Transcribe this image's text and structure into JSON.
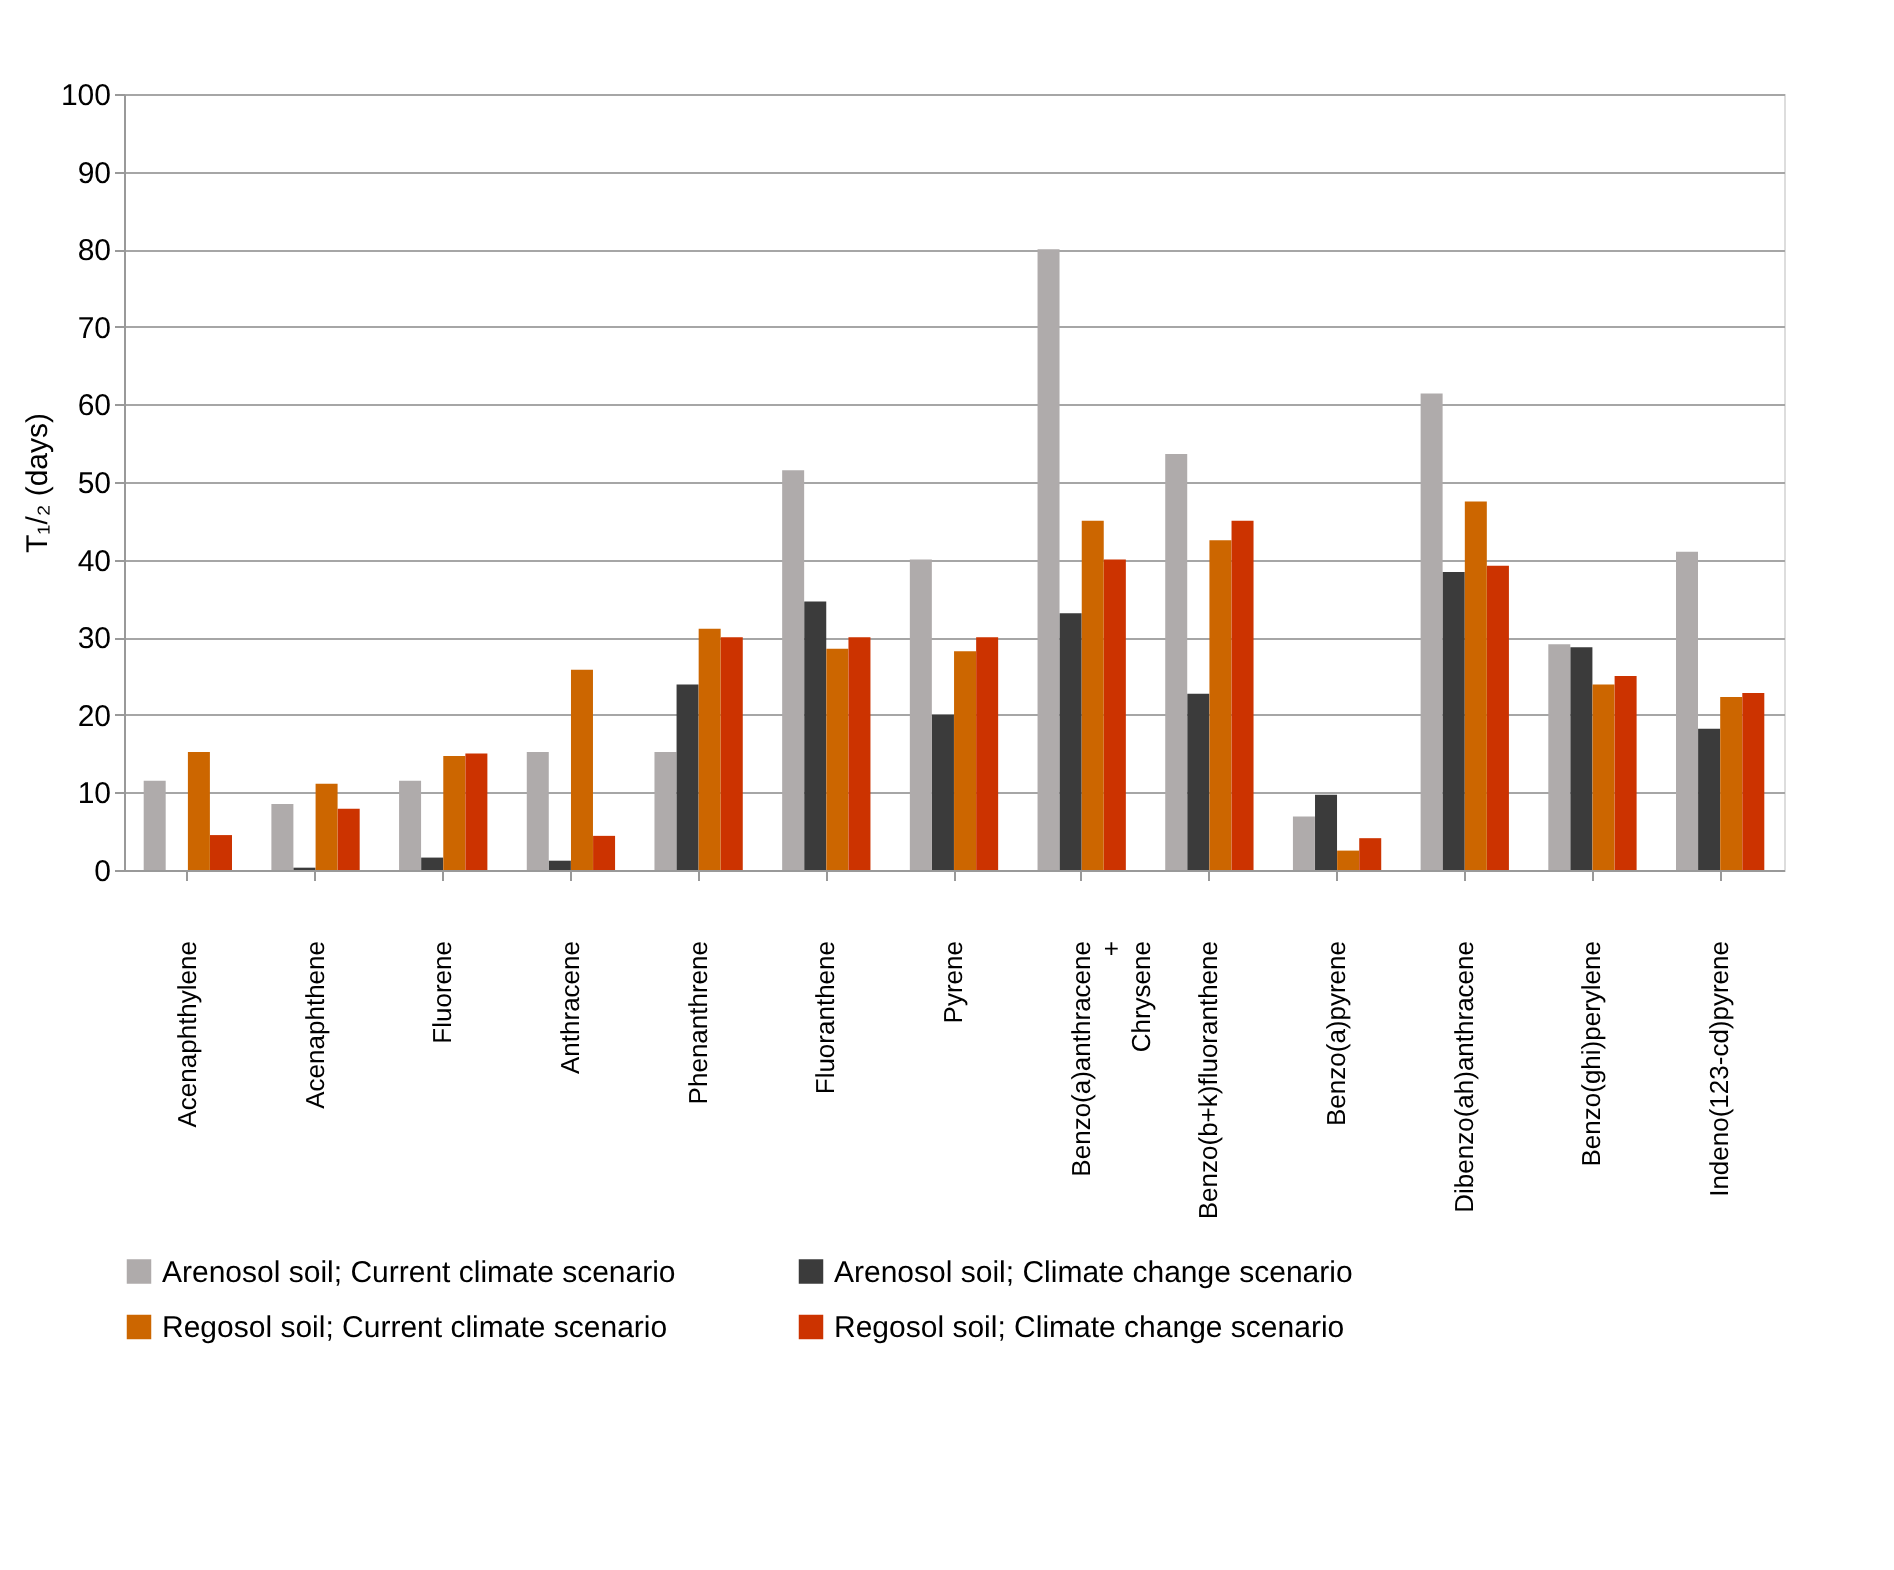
{
  "chart_data": {
    "type": "bar",
    "ylabel": "T₁/₂ (days)",
    "categories": [
      "Acenaphthylene",
      "Acenaphthene",
      "Fluorene",
      "Anthracene",
      "Phenanthrene",
      "Fluoranthene",
      "Pyrene",
      "Benzo(a)anthracene\n+\nChrysene",
      "Benzo(b+k)fluoranthene",
      "Benzo(a)pyrene",
      "Dibenzo(ah)anthracene",
      "Benzo(ghi)perylene",
      "Indeno(123-cd)pyrene"
    ],
    "series": [
      {
        "name": "Arenosol soil; Current climate scenario",
        "color": "#afabab",
        "values": [
          11.5,
          8.5,
          11.5,
          15.2,
          15.2,
          51.5,
          40.0,
          80.0,
          53.6,
          6.9,
          61.4,
          29.1,
          41.0
        ]
      },
      {
        "name": "Arenosol soil; Climate change scenario",
        "color": "#3b3b3b",
        "values": [
          null,
          0.3,
          1.6,
          1.2,
          23.9,
          34.6,
          20.0,
          33.1,
          22.7,
          9.7,
          38.4,
          28.7,
          18.2
        ]
      },
      {
        "name": "Regosol soil; Current climate scenario",
        "color": "#cc6600",
        "values": [
          15.2,
          11.1,
          14.7,
          25.8,
          31.1,
          28.5,
          28.2,
          45.0,
          42.5,
          2.5,
          47.5,
          23.9,
          22.3
        ]
      },
      {
        "name": "Regosol soil; Climate change scenario",
        "color": "#cc3300",
        "values": [
          4.5,
          7.9,
          15.0,
          4.4,
          30.0,
          30.0,
          30.0,
          40.0,
          45.0,
          4.1,
          39.2,
          25.0,
          22.8
        ]
      }
    ],
    "ylim": [
      0,
      100
    ],
    "yticks": [
      0,
      10,
      20,
      30,
      40,
      50,
      60,
      70,
      80,
      90,
      100
    ],
    "grid": "y",
    "legend": "bottom"
  }
}
